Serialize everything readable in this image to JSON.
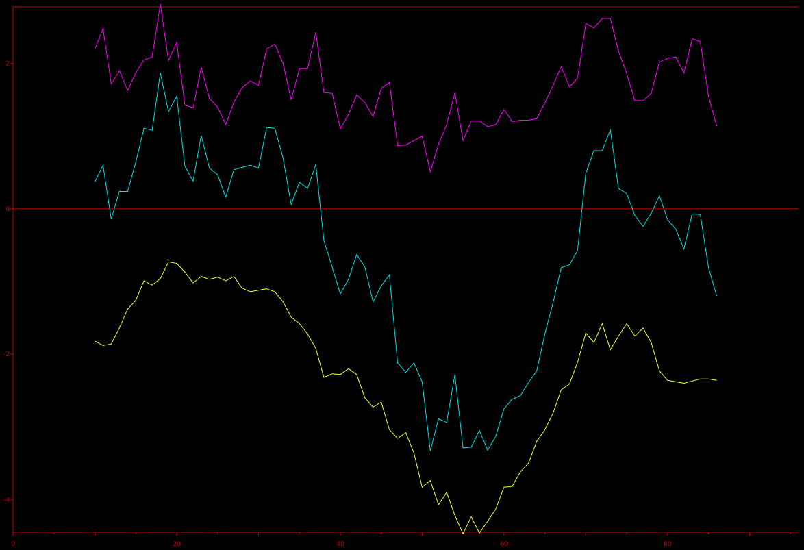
{
  "chart_data": {
    "type": "line",
    "title": "",
    "xlabel": "",
    "ylabel": "",
    "xlim": [
      0,
      96
    ],
    "ylim": [
      -4.45,
      2.78
    ],
    "xticks": [
      0,
      20,
      40,
      60,
      80
    ],
    "xtick_labels": [
      "0",
      "20",
      "40",
      "60",
      "80"
    ],
    "yticks": [
      2,
      0,
      -2,
      -4
    ],
    "ytick_labels": [
      "2",
      "0",
      "-2",
      "-4"
    ],
    "grid": false,
    "legend": "none",
    "colors": {
      "background": "#000000",
      "axes": "#cc0000",
      "zero_line": "#cc0000"
    },
    "x": [
      10,
      11,
      12,
      13,
      14,
      15,
      16,
      17,
      18,
      19,
      20,
      21,
      22,
      23,
      24,
      25,
      26,
      27,
      28,
      29,
      30,
      31,
      32,
      33,
      34,
      35,
      36,
      37,
      38,
      39,
      40,
      41,
      42,
      43,
      44,
      45,
      46,
      47,
      48,
      49,
      50,
      51,
      52,
      53,
      54,
      55,
      56,
      57,
      58,
      59,
      60,
      61,
      62,
      63,
      64,
      65,
      66,
      67,
      68,
      69,
      70,
      71,
      72,
      73,
      74,
      75,
      76,
      77,
      78,
      79,
      80,
      81,
      82,
      83,
      84,
      85,
      86
    ],
    "series": [
      {
        "color": "#ff00ff",
        "values": [
          2.2,
          2.48,
          1.72,
          1.9,
          1.63,
          1.87,
          2.05,
          2.09,
          2.82,
          2.04,
          2.29,
          1.43,
          1.39,
          1.95,
          1.52,
          1.4,
          1.16,
          1.47,
          1.67,
          1.76,
          1.7,
          2.2,
          2.27,
          2.0,
          1.5,
          1.93,
          1.93,
          2.43,
          1.6,
          1.59,
          1.1,
          1.3,
          1.57,
          1.46,
          1.27,
          1.66,
          1.74,
          0.87,
          0.88,
          0.94,
          1.0,
          0.51,
          0.89,
          1.16,
          1.6,
          0.94,
          1.21,
          1.21,
          1.13,
          1.16,
          1.37,
          1.2,
          1.22,
          1.22,
          1.24,
          1.46,
          1.7,
          1.96,
          1.68,
          1.8,
          2.55,
          2.49,
          2.62,
          2.62,
          2.17,
          1.86,
          1.49,
          1.49,
          1.59,
          2.02,
          2.07,
          2.09,
          1.87,
          2.34,
          2.3,
          1.55,
          1.14
        ]
      },
      {
        "color": "#00e5e5",
        "values": [
          0.37,
          0.6,
          -0.14,
          0.24,
          0.24,
          0.64,
          1.11,
          1.08,
          1.87,
          1.34,
          1.55,
          0.59,
          0.38,
          1.01,
          0.56,
          0.47,
          0.16,
          0.54,
          0.57,
          0.6,
          0.56,
          1.12,
          1.11,
          0.7,
          0.06,
          0.37,
          0.28,
          0.61,
          -0.44,
          -0.8,
          -1.17,
          -0.97,
          -0.63,
          -0.8,
          -1.28,
          -1.06,
          -0.91,
          -2.12,
          -2.25,
          -2.12,
          -2.38,
          -3.33,
          -2.89,
          -2.94,
          -2.28,
          -3.29,
          -3.28,
          -3.05,
          -3.32,
          -3.13,
          -2.75,
          -2.62,
          -2.57,
          -2.39,
          -2.23,
          -1.72,
          -1.29,
          -0.81,
          -0.77,
          -0.57,
          0.49,
          0.8,
          0.8,
          1.09,
          0.28,
          0.21,
          -0.09,
          -0.24,
          -0.06,
          0.18,
          -0.15,
          -0.28,
          -0.55,
          -0.07,
          -0.08,
          -0.81,
          -1.2
        ]
      },
      {
        "color": "#ffff33",
        "values": [
          -1.82,
          -1.88,
          -1.86,
          -1.64,
          -1.38,
          -1.26,
          -0.99,
          -1.05,
          -0.96,
          -0.73,
          -0.75,
          -0.87,
          -1.02,
          -0.93,
          -0.97,
          -0.94,
          -0.99,
          -0.93,
          -1.09,
          -1.14,
          -1.12,
          -1.1,
          -1.14,
          -1.28,
          -1.49,
          -1.58,
          -1.72,
          -1.92,
          -2.32,
          -2.27,
          -2.28,
          -2.2,
          -2.28,
          -2.6,
          -2.73,
          -2.66,
          -3.04,
          -3.16,
          -3.08,
          -3.36,
          -3.83,
          -3.74,
          -4.07,
          -3.9,
          -4.22,
          -4.47,
          -4.24,
          -4.46,
          -4.3,
          -4.13,
          -3.83,
          -3.82,
          -3.62,
          -3.5,
          -3.2,
          -3.04,
          -2.81,
          -2.49,
          -2.41,
          -2.11,
          -1.71,
          -1.84,
          -1.58,
          -1.94,
          -1.75,
          -1.58,
          -1.75,
          -1.64,
          -1.84,
          -2.23,
          -2.36,
          -2.38,
          -2.4,
          -2.37,
          -2.34,
          -2.34,
          -2.36
        ]
      }
    ]
  }
}
